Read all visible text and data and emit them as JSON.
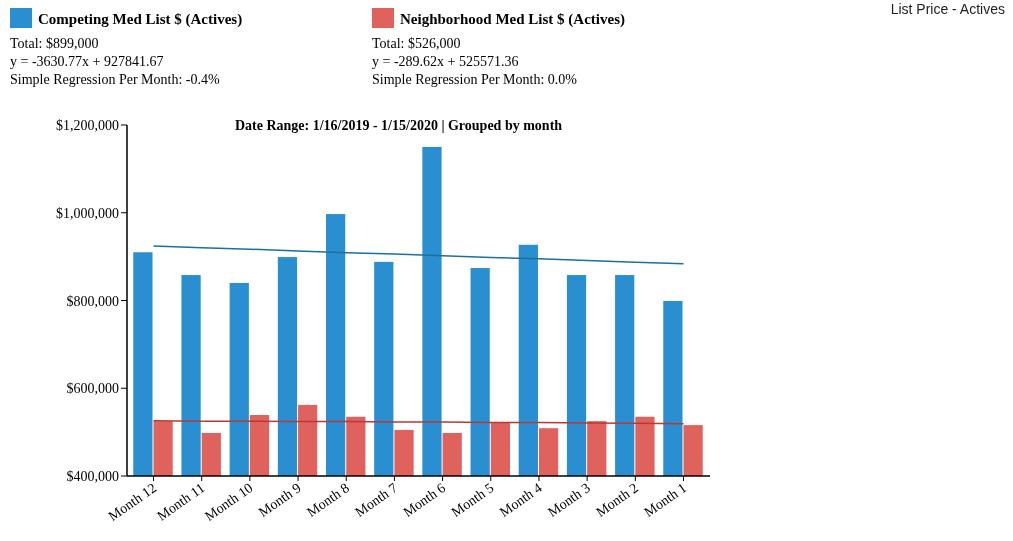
{
  "chart_data": {
    "type": "bar",
    "title": "List Price - Actives",
    "subtitle": "Date Range: 1/16/2019 - 1/15/2020 | Grouped by month",
    "categories": [
      "Month 12",
      "Month 11",
      "Month 10",
      "Month 9",
      "Month 8",
      "Month 7",
      "Month 6",
      "Month 5",
      "Month 4",
      "Month 3",
      "Month 2",
      "Month 1"
    ],
    "series": [
      {
        "name": "Competing Med List $ (Actives)",
        "color": "#2a8fd0",
        "values": [
          910000,
          858000,
          840000,
          899000,
          997000,
          888000,
          1150000,
          874000,
          927000,
          858000,
          858000,
          799000
        ]
      },
      {
        "name": "Neighborhood Med List $ (Actives)",
        "color": "#e0625c",
        "values": [
          525000,
          498000,
          539000,
          562000,
          535000,
          505000,
          498000,
          521000,
          509000,
          525000,
          535000,
          516000
        ]
      },
      {
        "type": "line",
        "color": "#1f6f9a",
        "values": [
          924000,
          920000,
          917000,
          913000,
          909000,
          906000,
          902000,
          898000,
          895000,
          891000,
          887000,
          884000
        ]
      },
      {
        "type": "line",
        "color": "#b83a36",
        "values": [
          526000,
          525000,
          525000,
          524000,
          524000,
          523000,
          523000,
          522000,
          522000,
          521000,
          520000,
          519000
        ]
      }
    ],
    "annotations": [
      "Total: $899,000",
      "y = -3630.77x + 927841.67",
      "Simple Regression Per Month: -0.4%",
      "Total: $526,000",
      "y = -289.62x + 525571.36",
      "Simple Regression Per Month: 0.0%"
    ],
    "ylim": [
      400000,
      1200000
    ],
    "yticks": [
      {
        "value": 400000,
        "label": "$400,000"
      },
      {
        "value": 600000,
        "label": "$600,000"
      },
      {
        "value": 800000,
        "label": "$800,000"
      },
      {
        "value": 1000000,
        "label": "$1,000,000"
      },
      {
        "value": 1200000,
        "label": "$1,200,000"
      }
    ],
    "grid": false,
    "legend": "top left"
  }
}
